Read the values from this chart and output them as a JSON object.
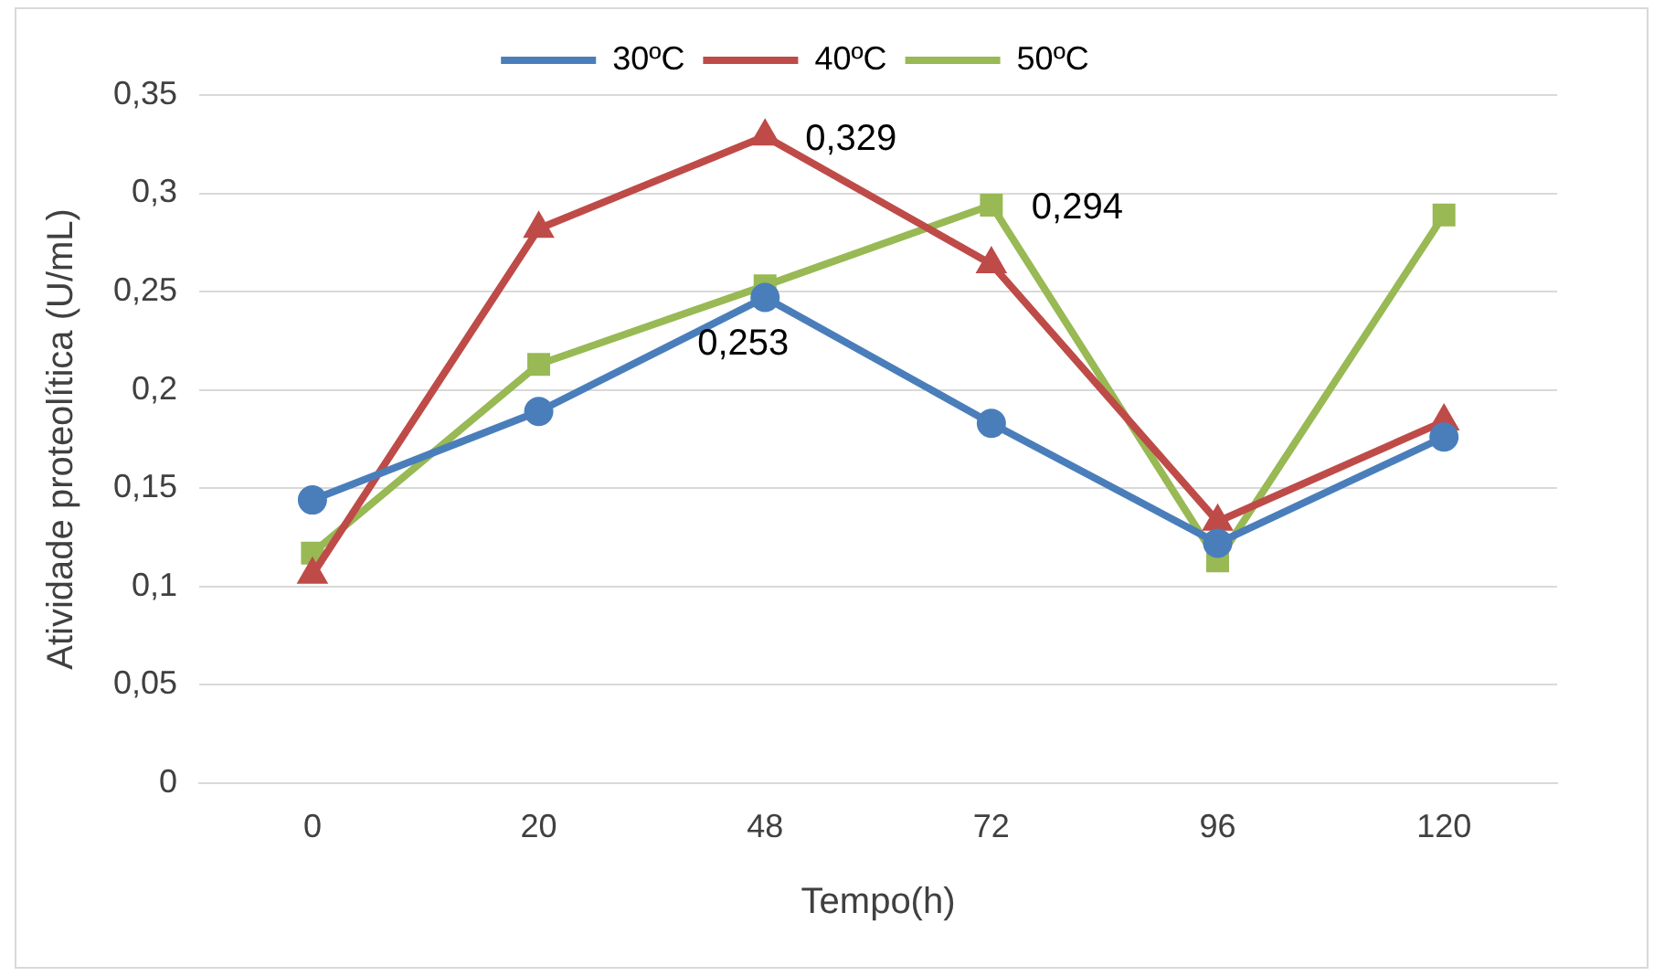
{
  "chart_data": {
    "type": "line",
    "xlabel": "Tempo(h)",
    "ylabel": "Atividade proteolítica (U/mL)",
    "categories": [
      "0",
      "20",
      "48",
      "72",
      "96",
      "120"
    ],
    "series": [
      {
        "name": "30ºC",
        "color": "#4a7ebb",
        "marker": "circle",
        "values": [
          0.144,
          0.189,
          0.247,
          0.183,
          0.122,
          0.176
        ]
      },
      {
        "name": "40ºC",
        "color": "#be4b48",
        "marker": "triangle",
        "values": [
          0.106,
          0.282,
          0.329,
          0.264,
          0.133,
          0.184
        ],
        "value_labels": [
          null,
          null,
          "0,329",
          null,
          null,
          null
        ]
      },
      {
        "name": "50ºC",
        "color": "#98b954",
        "marker": "square",
        "values": [
          0.117,
          0.213,
          0.253,
          0.294,
          0.113,
          0.289
        ],
        "value_labels": [
          null,
          null,
          "0,253",
          "0,294",
          null,
          null
        ]
      }
    ],
    "ylim": [
      0,
      0.35
    ],
    "yticks": [
      0,
      {
        "value": 0.05,
        "label": "0,05"
      },
      {
        "value": 0.1,
        "label": "0,1"
      },
      {
        "value": 0.15,
        "label": "0,15"
      },
      {
        "value": 0.2,
        "label": "0,2"
      },
      {
        "value": 0.25,
        "label": "0,25"
      },
      {
        "value": 0.3,
        "label": "0,3"
      },
      {
        "value": 0.35,
        "label": "0,35"
      }
    ],
    "grid": "y",
    "legend": "top"
  }
}
